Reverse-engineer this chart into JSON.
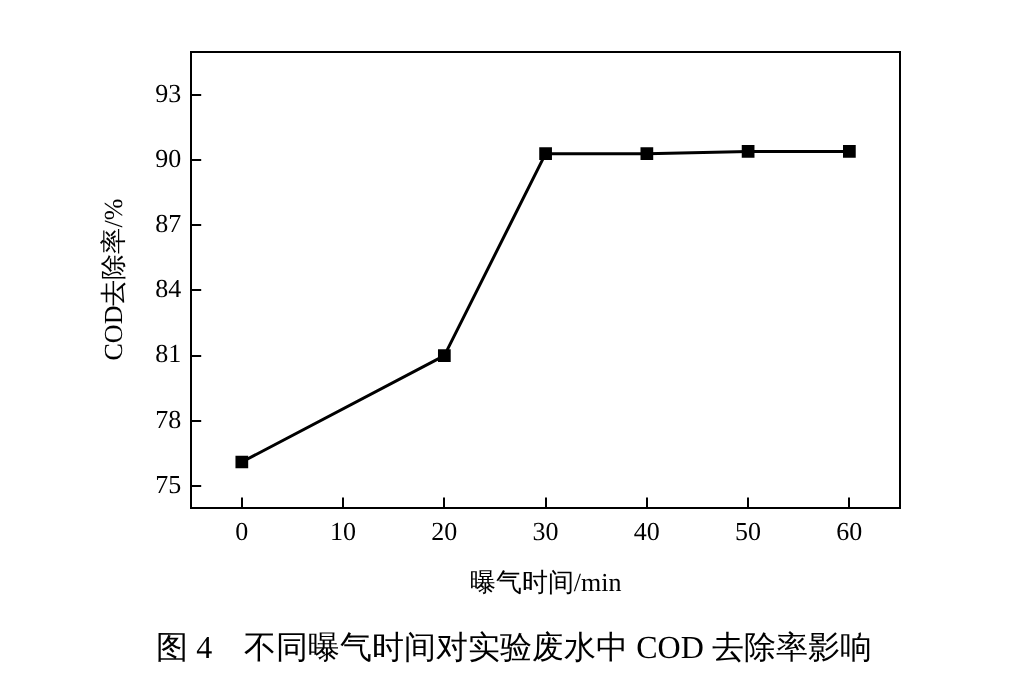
{
  "chart_data": {
    "type": "line",
    "title": "图 4　不同曝气时间对实验废水中 COD 去除率影响",
    "xlabel": "曝气时间/min",
    "ylabel": "COD去除率/%",
    "x": [
      0,
      20,
      30,
      40,
      50,
      60
    ],
    "series": [
      {
        "color": "#000000",
        "values": [
          76.1,
          81.0,
          90.3,
          90.3,
          90.4,
          90.4
        ]
      }
    ],
    "xlim": [
      -5,
      65
    ],
    "xticks": [
      0,
      10,
      20,
      30,
      40,
      50,
      60
    ],
    "ylim": [
      74,
      95
    ],
    "yticks": [
      75,
      78,
      81,
      84,
      87,
      90,
      93
    ],
    "marker": "square",
    "line_style": "solid",
    "grid": false,
    "legend": false
  }
}
